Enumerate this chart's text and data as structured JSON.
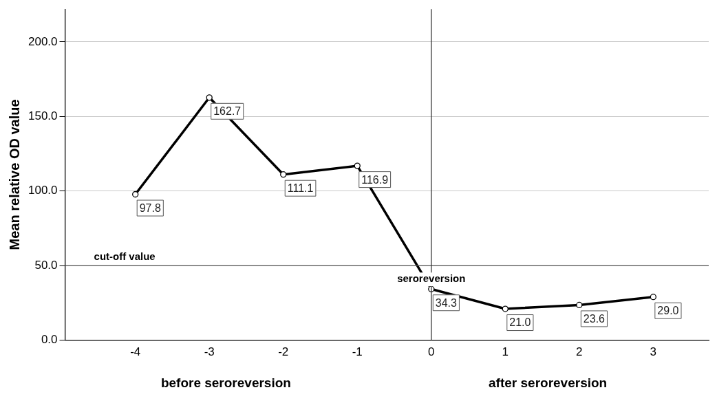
{
  "chart_data": {
    "type": "line",
    "ylabel": "Mean relative OD value",
    "x": [
      -4,
      -3,
      -2,
      -1,
      0,
      1,
      2,
      3
    ],
    "series": [
      {
        "color": "#000000",
        "values": [
          97.8,
          162.7,
          111.1,
          116.9,
          34.3,
          21.0,
          23.6,
          29.0
        ],
        "value_labels": [
          "97.8",
          "162.7",
          "111.1",
          "116.9",
          "34.3",
          "21.0",
          "23.6",
          "29.0"
        ]
      }
    ],
    "xlim": [
      -4.95,
      3.75
    ],
    "xticks": [
      -4,
      -3,
      -2,
      -1,
      0,
      1,
      2,
      3
    ],
    "ylim": [
      0,
      222
    ],
    "yticks": [
      {
        "value": 0,
        "label": "0.0"
      },
      {
        "value": 50,
        "label": "50.0"
      },
      {
        "value": 100,
        "label": "100.0"
      },
      {
        "value": 150,
        "label": "150.0"
      },
      {
        "value": 200,
        "label": "200.0"
      }
    ],
    "grid": "y",
    "legend": false,
    "marker": "circle",
    "line_style": "solid",
    "ref_lines": [
      {
        "axis": "y",
        "value": 50,
        "label": "cut-off value",
        "color": "#555555"
      },
      {
        "axis": "x",
        "value": 0,
        "label": "seroreversion",
        "color": "#333333"
      }
    ],
    "annotations": [
      "before seroreversion",
      "after seroreversion"
    ]
  }
}
